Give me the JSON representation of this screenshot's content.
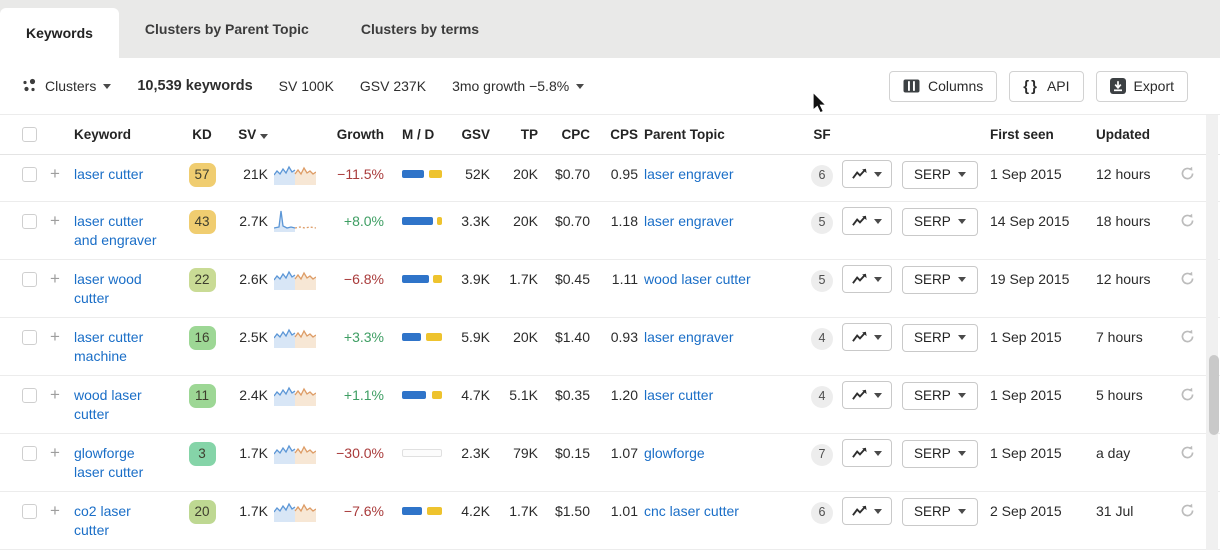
{
  "tabs": [
    {
      "label": "Keywords",
      "active": true
    },
    {
      "label": "Clusters by Parent Topic",
      "active": false
    },
    {
      "label": "Clusters by terms",
      "active": false
    }
  ],
  "toolbar": {
    "clusters_label": "Clusters",
    "keywords_count": "10,539 keywords",
    "sv_total": "SV 100K",
    "gsv_total": "GSV 237K",
    "growth_label": "3mo growth −5.8%",
    "buttons": {
      "columns": "Columns",
      "api": "API",
      "export": "Export"
    }
  },
  "table": {
    "headers": {
      "keyword": "Keyword",
      "kd": "KD",
      "sv": "SV",
      "growth": "Growth",
      "md": "M / D",
      "gsv": "GSV",
      "tp": "TP",
      "cpc": "CPC",
      "cps": "CPS",
      "parent": "Parent Topic",
      "sf": "SF",
      "first_seen": "First seen",
      "updated": "Updated"
    },
    "serp_label": "SERP",
    "rows": [
      {
        "keyword": "laser cutter",
        "kd": "57",
        "kd_color": "#f0cd70",
        "sv": "21K",
        "spark": "default",
        "growth": "−11.5%",
        "trend": "neg",
        "md_blue": 55,
        "md_yellow": 33,
        "gsv": "52K",
        "tp": "20K",
        "cpc": "$0.70",
        "cps": "0.95",
        "parent": "laser engraver",
        "sf": "6",
        "first_seen": "1 Sep 2015",
        "updated": "12 hours"
      },
      {
        "keyword": "laser cutter and engraver",
        "kd": "43",
        "kd_color": "#f0cd70",
        "sv": "2.7K",
        "spark": "spike",
        "growth": "+8.0%",
        "trend": "pos",
        "md_blue": 78,
        "md_yellow": 12,
        "gsv": "3.3K",
        "tp": "20K",
        "cpc": "$0.70",
        "cps": "1.18",
        "parent": "laser engraver",
        "sf": "5",
        "first_seen": "14 Sep 2015",
        "updated": "18 hours"
      },
      {
        "keyword": "laser wood cutter",
        "kd": "22",
        "kd_color": "#c9db95",
        "sv": "2.6K",
        "spark": "default",
        "growth": "−6.8%",
        "trend": "neg",
        "md_blue": 68,
        "md_yellow": 22,
        "gsv": "3.9K",
        "tp": "1.7K",
        "cpc": "$0.45",
        "cps": "1.11",
        "parent": "wood laser cutter",
        "sf": "5",
        "first_seen": "19 Sep 2015",
        "updated": "12 hours"
      },
      {
        "keyword": "laser cutter machine",
        "kd": "16",
        "kd_color": "#9dd795",
        "sv": "2.5K",
        "spark": "default",
        "growth": "+3.3%",
        "trend": "pos",
        "md_blue": 48,
        "md_yellow": 40,
        "gsv": "5.9K",
        "tp": "20K",
        "cpc": "$1.40",
        "cps": "0.93",
        "parent": "laser engraver",
        "sf": "4",
        "first_seen": "1 Sep 2015",
        "updated": "7 hours"
      },
      {
        "keyword": "wood laser cutter",
        "kd": "11",
        "kd_color": "#9dd795",
        "sv": "2.4K",
        "spark": "default",
        "growth": "+1.1%",
        "trend": "pos",
        "md_blue": 60,
        "md_yellow": 26,
        "gsv": "4.7K",
        "tp": "5.1K",
        "cpc": "$0.35",
        "cps": "1.20",
        "parent": "laser cutter",
        "sf": "4",
        "first_seen": "1 Sep 2015",
        "updated": "5 hours"
      },
      {
        "keyword": "glowforge laser cutter",
        "kd": "3",
        "kd_color": "#85d4a8",
        "sv": "1.7K",
        "spark": "default",
        "growth": "−30.0%",
        "trend": "neg",
        "md_blue": 0,
        "md_yellow": 0,
        "gsv": "2.3K",
        "tp": "79K",
        "cpc": "$0.15",
        "cps": "1.07",
        "parent": "glowforge",
        "sf": "7",
        "first_seen": "1 Sep 2015",
        "updated": "a day"
      },
      {
        "keyword": "co2 laser cutter",
        "kd": "20",
        "kd_color": "#bed892",
        "sv": "1.7K",
        "spark": "default",
        "growth": "−7.6%",
        "trend": "neg",
        "md_blue": 50,
        "md_yellow": 38,
        "gsv": "4.2K",
        "tp": "1.7K",
        "cpc": "$1.50",
        "cps": "1.01",
        "parent": "cnc laser cutter",
        "sf": "6",
        "first_seen": "2 Sep 2015",
        "updated": "31 Jul"
      }
    ]
  },
  "colors": {
    "accent_link": "#1a6ec7",
    "growth_negative": "#a93b3b",
    "growth_positive": "#3e9e63",
    "md_mobile_blue": "#2f74c9",
    "md_desktop_yellow": "#eec32e"
  }
}
